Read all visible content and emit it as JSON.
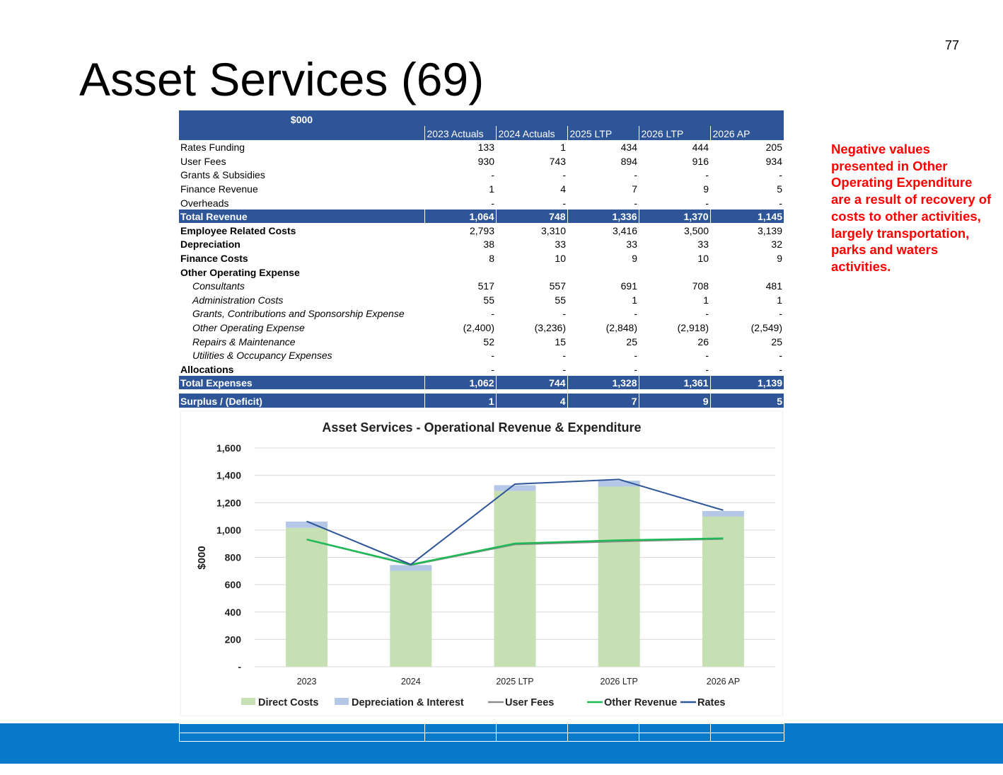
{
  "page_number": "77",
  "title": "Asset Services (69)",
  "note": "Negative values presented in Other Operating Expenditure are a result of recovery of costs to other activities, largely transportation, parks and waters activities.",
  "table": {
    "unit_label": "$000",
    "periods": [
      "2023 Actuals",
      "2024 Actuals",
      "2025 LTP",
      "2026 LTP",
      "2026 AP"
    ],
    "rows": [
      {
        "label": "Rates Funding",
        "style": "plain",
        "values": [
          "133",
          "1",
          "434",
          "444",
          "205"
        ]
      },
      {
        "label": "User Fees",
        "style": "plain",
        "values": [
          "930",
          "743",
          "894",
          "916",
          "934"
        ]
      },
      {
        "label": "Grants & Subsidies",
        "style": "plain",
        "values": [
          "-",
          "-",
          "-",
          "-",
          "-"
        ]
      },
      {
        "label": "Finance Revenue",
        "style": "plain",
        "values": [
          "1",
          "4",
          "7",
          "9",
          "5"
        ]
      },
      {
        "label": "Overheads",
        "style": "plain",
        "values": [
          "-",
          "-",
          "-",
          "-",
          "-"
        ]
      },
      {
        "label": "Total Revenue",
        "style": "total",
        "values": [
          "1,064",
          "748",
          "1,336",
          "1,370",
          "1,145"
        ]
      },
      {
        "label": "Employee Related Costs",
        "style": "bold",
        "values": [
          "2,793",
          "3,310",
          "3,416",
          "3,500",
          "3,139"
        ]
      },
      {
        "label": "Depreciation",
        "style": "bold",
        "values": [
          "38",
          "33",
          "33",
          "33",
          "32"
        ]
      },
      {
        "label": "Finance Costs",
        "style": "bold",
        "values": [
          "8",
          "10",
          "9",
          "10",
          "9"
        ]
      },
      {
        "label": "Other Operating  Expense",
        "style": "bold",
        "values": [
          "",
          "",
          "",
          "",
          ""
        ]
      },
      {
        "label": "Consultants",
        "style": "sub",
        "values": [
          "517",
          "557",
          "691",
          "708",
          "481"
        ]
      },
      {
        "label": "Administration Costs",
        "style": "sub",
        "values": [
          "55",
          "55",
          "1",
          "1",
          "1"
        ]
      },
      {
        "label": "Grants, Contributions and Sponsorship Expense",
        "style": "sub",
        "values": [
          "-",
          "-",
          "-",
          "-",
          "-"
        ]
      },
      {
        "label": "Other Operating Expense",
        "style": "sub",
        "values": [
          "(2,400)",
          "(3,236)",
          "(2,848)",
          "(2,918)",
          "(2,549)"
        ]
      },
      {
        "label": "Repairs & Maintenance",
        "style": "sub",
        "values": [
          "52",
          "15",
          "25",
          "26",
          "25"
        ]
      },
      {
        "label": "Utilities & Occupancy Expenses",
        "style": "sub",
        "values": [
          "-",
          "-",
          "-",
          "-",
          "-"
        ]
      },
      {
        "label": "Allocations",
        "style": "bold",
        "values": [
          "-",
          "-",
          "-",
          "-",
          "-"
        ]
      },
      {
        "label": "Total Expenses",
        "style": "total",
        "values": [
          "1,062",
          "744",
          "1,328",
          "1,361",
          "1,139"
        ]
      },
      {
        "label": "",
        "style": "gap",
        "values": [
          "",
          "",
          "",
          "",
          ""
        ]
      },
      {
        "label": "Surplus / (Deficit)",
        "style": "total",
        "values": [
          "1",
          "4",
          "7",
          "9",
          "5"
        ]
      }
    ]
  },
  "chart_data": {
    "type": "bar",
    "title": "Asset Services - Operational Revenue & Expenditure",
    "xlabel": "",
    "ylabel": "$000",
    "categories": [
      "2023",
      "2024",
      "2025 LTP",
      "2026 LTP",
      "2026 AP"
    ],
    "ylim": [
      0,
      1600
    ],
    "yticks": [
      0,
      200,
      400,
      600,
      800,
      1000,
      1200,
      1400,
      1600
    ],
    "ytick_labels": [
      "-",
      "200",
      "400",
      "600",
      "800",
      "1,000",
      "1,200",
      "1,400",
      "1,600"
    ],
    "grid": true,
    "legend": "bottom",
    "bar_series": [
      {
        "name": "Direct Costs",
        "color": "#c6e0b4",
        "values": [
          1016,
          701,
          1286,
          1318,
          1098
        ]
      },
      {
        "name": "Depreciation & Interest",
        "color": "#b4c7e7",
        "values": [
          46,
          43,
          42,
          43,
          41
        ]
      }
    ],
    "line_series": [
      {
        "name": "User Fees",
        "color": "#8c8c8c",
        "values": [
          930,
          743,
          894,
          916,
          934
        ]
      },
      {
        "name": "Other Revenue",
        "color": "#1db954",
        "values": [
          931,
          747,
          901,
          925,
          939
        ]
      },
      {
        "name": "Rates",
        "color": "#2e5597",
        "values": [
          1064,
          748,
          1336,
          1370,
          1145
        ]
      }
    ]
  }
}
